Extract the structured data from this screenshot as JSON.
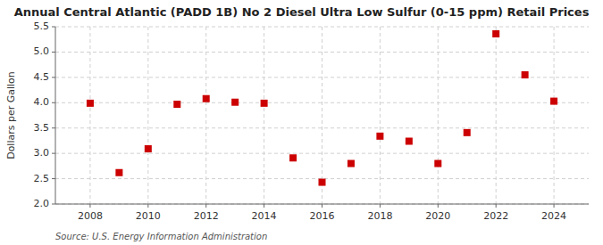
{
  "chart_data": {
    "type": "scatter",
    "title": "Annual Central Atlantic (PADD 1B) No 2 Diesel Ultra Low Sulfur (0-15 ppm) Retail Prices",
    "y_label": "Dollars per Gallon",
    "annotations": [
      "Source: U.S. Energy Information Administration"
    ],
    "x": [
      2008,
      2009,
      2010,
      2011,
      2012,
      2013,
      2014,
      2015,
      2016,
      2017,
      2018,
      2019,
      2020,
      2021,
      2022,
      2023,
      2024
    ],
    "values": [
      3.99,
      2.62,
      3.09,
      3.97,
      4.08,
      4.01,
      3.99,
      2.91,
      2.43,
      2.8,
      3.34,
      3.24,
      2.8,
      3.41,
      5.36,
      4.55,
      4.03
    ],
    "color": "#cc0000",
    "marker": "square",
    "xlim": [
      2006.8,
      2025.2
    ],
    "xticks": [
      2008,
      2010,
      2012,
      2014,
      2016,
      2018,
      2020,
      2022,
      2024
    ],
    "ylim": [
      2.0,
      5.5
    ],
    "yticks": [
      {
        "value": 2.0,
        "label": "2.0"
      },
      2.5,
      {
        "value": 3.0,
        "label": "3.0"
      },
      3.5,
      {
        "value": 4.0,
        "label": "4.0"
      },
      4.5,
      {
        "value": 5.0,
        "label": "5.0"
      },
      5.5
    ],
    "grid": true
  }
}
